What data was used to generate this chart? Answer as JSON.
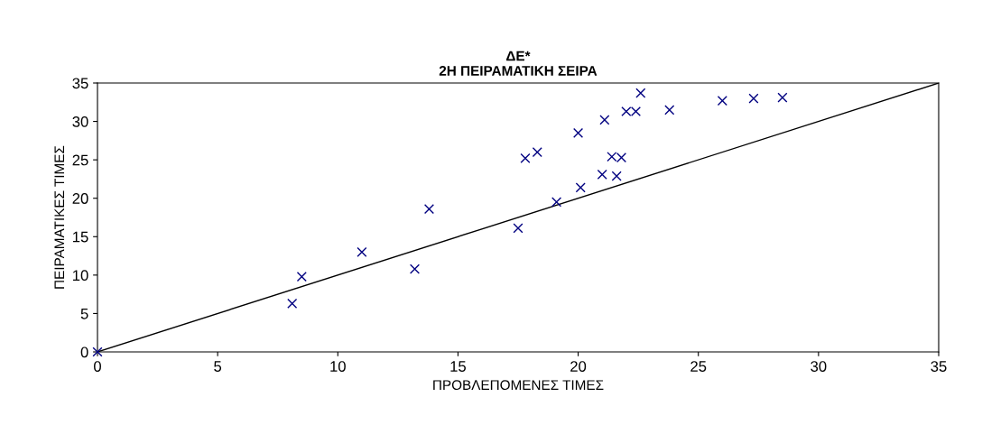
{
  "chart_data": {
    "type": "scatter",
    "title": "ΔΕ*\n2Η ΠΕΙΡΑΜΑΤΙΚΗ ΣΕΙΡΑ",
    "xlabel": "ΠΡΟΒΛΕΠΟΜΕΝΕΣ ΤΙΜΕΣ",
    "ylabel": "ΠΕΙΡΑΜΑΤΙΚΕΣ ΤΙΜΕΣ",
    "x": [
      0,
      8.1,
      8.5,
      11,
      13.2,
      13.8,
      17.5,
      17.8,
      18.3,
      19.1,
      20,
      20.1,
      21,
      21.1,
      21.4,
      21.6,
      21.8,
      22,
      22.4,
      22.6,
      23.8,
      26,
      27.3,
      28.5
    ],
    "series": [
      {
        "color": "#000080",
        "marker": "cross",
        "values": [
          0,
          6.3,
          9.8,
          13,
          10.8,
          18.6,
          16.1,
          25.2,
          26,
          19.5,
          28.5,
          21.4,
          23.1,
          30.2,
          25.4,
          22.9,
          25.3,
          31.3,
          31.3,
          33.7,
          31.5,
          32.7,
          33,
          33.1
        ]
      },
      {
        "type": "line",
        "color": "#000000",
        "x": [
          0,
          35
        ],
        "values": [
          0,
          35
        ]
      }
    ],
    "xlim": [
      0,
      35
    ],
    "ylim": [
      0,
      35
    ],
    "xticks": [
      0,
      5,
      10,
      15,
      20,
      25,
      30,
      35
    ],
    "yticks": [
      0,
      5,
      10,
      15,
      20,
      25,
      30,
      35
    ],
    "grid": false,
    "legend": false
  }
}
